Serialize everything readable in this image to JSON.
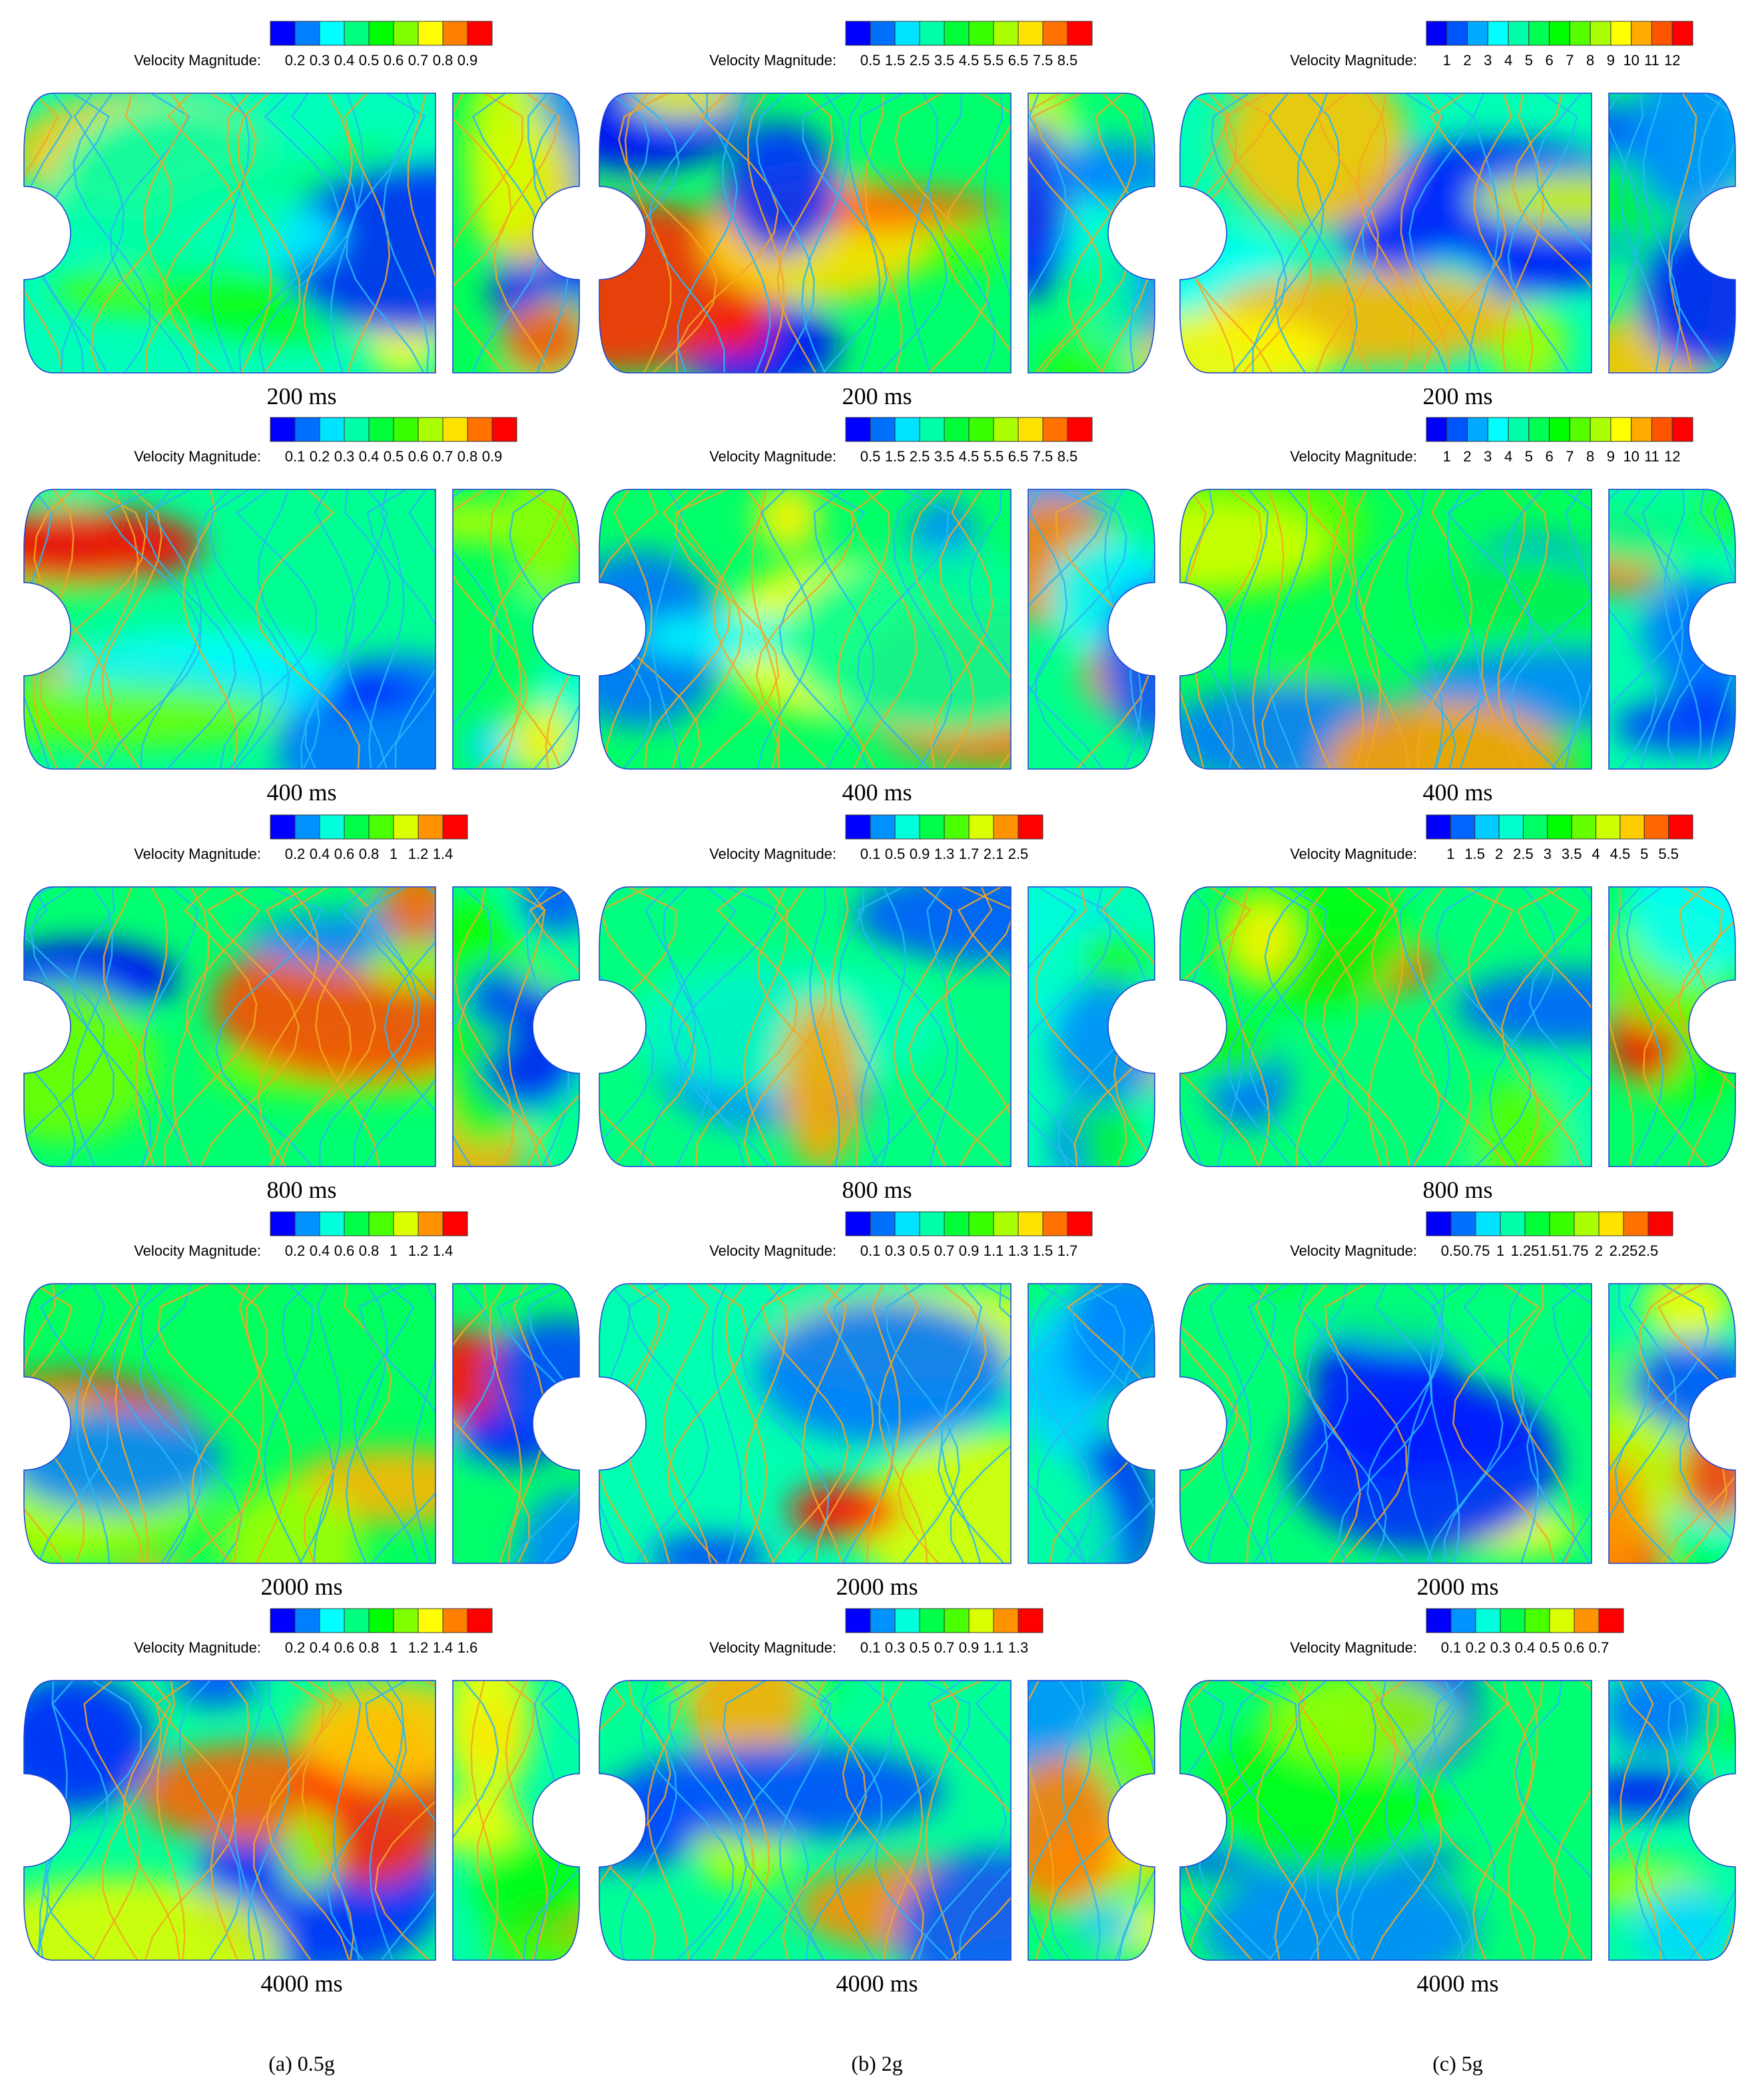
{
  "columns": [
    {
      "label": "(a) 0.5g",
      "panels": [
        {
          "legend_title": "Velocity Magnitude:",
          "ticks": [
            0.2,
            0.3,
            0.4,
            0.5,
            0.6,
            0.7,
            0.8,
            0.9
          ],
          "time": "200 ms"
        },
        {
          "legend_title": "Velocity Magnitude:",
          "ticks": [
            0.1,
            0.2,
            0.3,
            0.4,
            0.5,
            0.6,
            0.7,
            0.8,
            0.9
          ],
          "time": "400 ms"
        },
        {
          "legend_title": "Velocity Magnitude:",
          "ticks": [
            0.2,
            0.4,
            0.6,
            0.8,
            1,
            1.2,
            1.4
          ],
          "time": "800 ms"
        },
        {
          "legend_title": "Velocity Magnitude:",
          "ticks": [
            0.2,
            0.4,
            0.6,
            0.8,
            1,
            1.2,
            1.4
          ],
          "time": "2000 ms"
        },
        {
          "legend_title": "Velocity Magnitude:",
          "ticks": [
            0.2,
            0.4,
            0.6,
            0.8,
            1,
            1.2,
            1.4,
            1.6
          ],
          "time": "4000 ms"
        }
      ]
    },
    {
      "label": "(b) 2g",
      "panels": [
        {
          "legend_title": "Velocity Magnitude:",
          "ticks": [
            0.5,
            1.5,
            2.5,
            3.5,
            4.5,
            5.5,
            6.5,
            7.5,
            8.5
          ],
          "time": "200 ms"
        },
        {
          "legend_title": "Velocity Magnitude:",
          "ticks": [
            0.5,
            1.5,
            2.5,
            3.5,
            4.5,
            5.5,
            6.5,
            7.5,
            8.5
          ],
          "time": "400 ms"
        },
        {
          "legend_title": "Velocity Magnitude:",
          "ticks": [
            0.1,
            0.5,
            0.9,
            1.3,
            1.7,
            2.1,
            2.5
          ],
          "time": "800 ms"
        },
        {
          "legend_title": "Velocity Magnitude:",
          "ticks": [
            0.1,
            0.3,
            0.5,
            0.7,
            0.9,
            1.1,
            1.3,
            1.5,
            1.7
          ],
          "time": "2000 ms"
        },
        {
          "legend_title": "Velocity Magnitude:",
          "ticks": [
            0.1,
            0.3,
            0.5,
            0.7,
            0.9,
            1.1,
            1.3
          ],
          "time": "4000 ms"
        }
      ]
    },
    {
      "label": "(c) 5g",
      "panels": [
        {
          "legend_title": "Velocity Magnitude:",
          "ticks": [
            1,
            2,
            3,
            4,
            5,
            6,
            7,
            8,
            9,
            10,
            11,
            12
          ],
          "time": "200 ms"
        },
        {
          "legend_title": "Velocity Magnitude:",
          "ticks": [
            1,
            2,
            3,
            4,
            5,
            6,
            7,
            8,
            9,
            10,
            11,
            12
          ],
          "time": "400 ms"
        },
        {
          "legend_title": "Velocity Magnitude:",
          "ticks": [
            1,
            1.5,
            2,
            2.5,
            3,
            3.5,
            4,
            4.5,
            5,
            5.5
          ],
          "time": "800 ms"
        },
        {
          "legend_title": "Velocity Magnitude:",
          "ticks": [
            0.5,
            0.75,
            1,
            1.25,
            1.5,
            1.75,
            2,
            2.25,
            2.5
          ],
          "time": "2000 ms"
        },
        {
          "legend_title": "Velocity Magnitude:",
          "ticks": [
            0.1,
            0.2,
            0.3,
            0.4,
            0.5,
            0.6,
            0.7
          ],
          "time": "4000 ms"
        }
      ]
    }
  ]
}
